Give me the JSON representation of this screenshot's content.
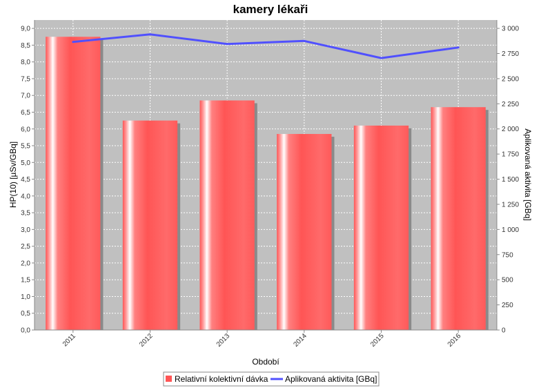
{
  "chart_data": {
    "type": "bar",
    "title": "kamery lékaři",
    "xlabel": "Období",
    "ylabel": "HP(10) [µSv/GBq]",
    "y2label": "Aplikovaná aktivita [GBq]",
    "categories": [
      "2011",
      "2012",
      "2013",
      "2014",
      "2015",
      "2016"
    ],
    "series": [
      {
        "name": "Relativní kolektivní dávka",
        "kind": "bar",
        "axis": "left",
        "values": [
          8.75,
          6.25,
          6.85,
          5.85,
          6.1,
          6.65
        ]
      },
      {
        "name": "Aplikovaná aktivita [GBq]",
        "kind": "line",
        "axis": "right",
        "values": [
          2865,
          2940,
          2845,
          2875,
          2705,
          2810
        ]
      }
    ],
    "ylim": [
      0,
      9.25
    ],
    "y2lim": [
      0,
      3083
    ],
    "yticks": [
      "0,0",
      "0,5",
      "1,0",
      "1,5",
      "2,0",
      "2,5",
      "3,0",
      "3,5",
      "4,0",
      "4,5",
      "5,0",
      "5,5",
      "6,0",
      "6,5",
      "7,0",
      "7,5",
      "8,0",
      "8,5",
      "9,0"
    ],
    "y2ticks": [
      "0",
      "250",
      "500",
      "750",
      "1 000",
      "1 250",
      "1 500",
      "1 750",
      "2 000",
      "2 250",
      "2 500",
      "2 750",
      "3 000"
    ],
    "grid": true,
    "legend": "bottom",
    "colors": {
      "bar": "#ff5555",
      "bar_light": "#ffffff",
      "bar_shadow": "#8a8a8a",
      "line": "#5050ff",
      "plot_bg": "#c0c0c0",
      "grid": "#ffffff"
    }
  }
}
